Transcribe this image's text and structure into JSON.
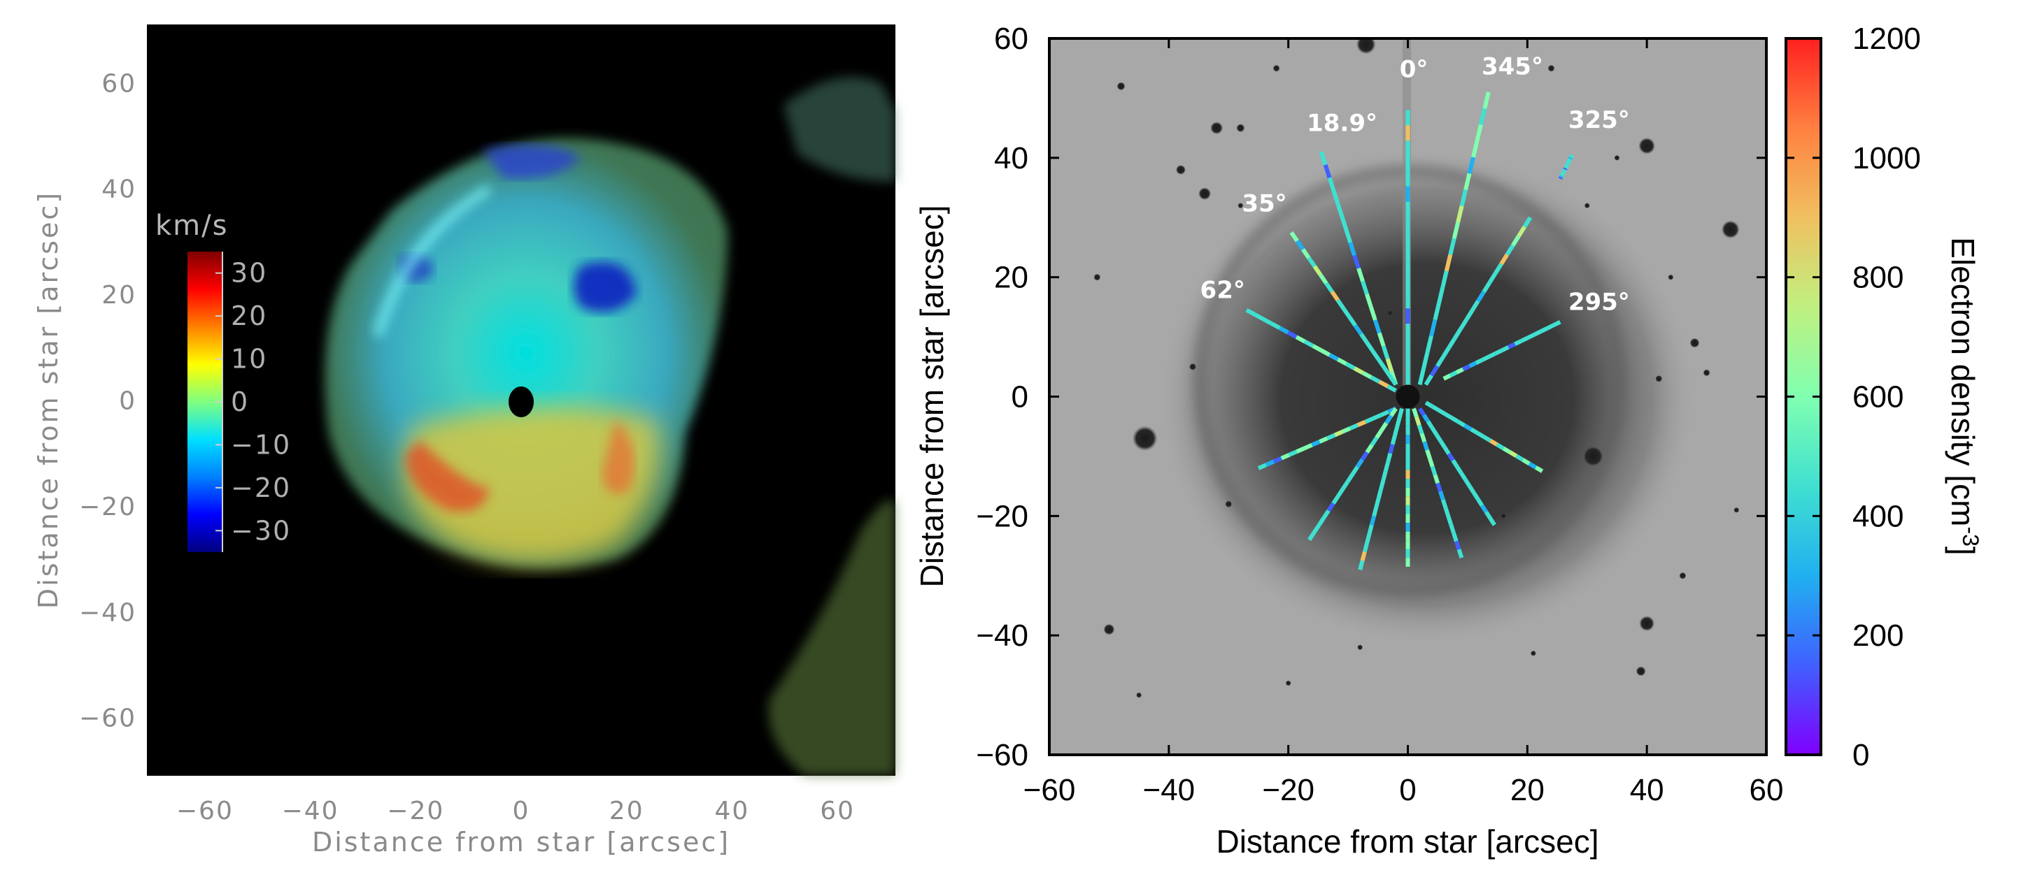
{
  "chart_data": [
    {
      "type": "heatmap",
      "title": "",
      "xlabel": "Distance from star [arcsec]",
      "ylabel": "Distance from star [arcsec]",
      "xlim": [
        -71,
        71
      ],
      "ylim": [
        -71,
        71
      ],
      "x_ticks": [
        -60,
        -40,
        -20,
        0,
        20,
        40,
        60
      ],
      "y_ticks": [
        60,
        40,
        20,
        0,
        -20,
        -40,
        -60
      ],
      "colorbar": {
        "unit": "km/s",
        "range": [
          -35,
          35
        ],
        "ticks": [
          30,
          20,
          10,
          0,
          -10,
          -20,
          -30
        ],
        "colormap": [
          "#00007f",
          "#0000ff",
          "#0080ff",
          "#00e0ff",
          "#80ff80",
          "#ffff00",
          "#ff8000",
          "#ff0000",
          "#7f0000"
        ]
      },
      "grid": false
    },
    {
      "type": "line",
      "title": "",
      "xlabel": "Distance from star [arcsec]",
      "ylabel": "Distance from star [arcsec]",
      "xlim": [
        -60,
        60
      ],
      "ylim": [
        -60,
        60
      ],
      "x_ticks": [
        -60,
        -40,
        -20,
        0,
        20,
        40,
        60
      ],
      "y_ticks": [
        60,
        40,
        20,
        0,
        -20,
        -40,
        -60
      ],
      "angle_labels": [
        "0°",
        "345°",
        "18.9°",
        "325°",
        "35°",
        "62°",
        "295°"
      ],
      "colorbar": {
        "label": "Electron density [cm",
        "label_sup": "-3",
        "label_end": "]",
        "range": [
          0,
          1200
        ],
        "ticks": [
          1200,
          1000,
          800,
          600,
          400,
          200,
          0
        ],
        "colormap": [
          "#8000ff",
          "#4060ff",
          "#20b0f0",
          "#40e0d0",
          "#80ffb0",
          "#c0f080",
          "#f0c060",
          "#ff8040",
          "#ff2020"
        ]
      },
      "series": [
        {
          "x": [
            0,
            0
          ],
          "y": [
            2,
            48
          ]
        },
        {
          "x": [
            2,
            13.5
          ],
          "y": [
            2,
            51
          ]
        },
        {
          "x": [
            -2,
            -14.5
          ],
          "y": [
            2,
            41
          ]
        },
        {
          "x": [
            25.5,
            27.5
          ],
          "y": [
            36.5,
            40.5
          ]
        },
        {
          "x": [
            -2,
            -19.5
          ],
          "y": [
            2,
            27.5
          ]
        },
        {
          "x": [
            -2,
            -27
          ],
          "y": [
            1,
            14.5
          ]
        },
        {
          "x": [
            6,
            25.5
          ],
          "y": [
            3,
            12.5
          ]
        },
        {
          "x": [
            3,
            20.5
          ],
          "y": [
            2,
            30
          ]
        },
        {
          "x": [
            -2,
            -25
          ],
          "y": [
            -2,
            -12
          ]
        },
        {
          "x": [
            -2,
            -16.5
          ],
          "y": [
            -2,
            -24
          ]
        },
        {
          "x": [
            -1,
            -8
          ],
          "y": [
            -2,
            -29
          ]
        },
        {
          "x": [
            0,
            0
          ],
          "y": [
            -2,
            -28.5
          ]
        },
        {
          "x": [
            1,
            9
          ],
          "y": [
            -2,
            -27
          ]
        },
        {
          "x": [
            2,
            14.5
          ],
          "y": [
            -2,
            -21.5
          ]
        },
        {
          "x": [
            3,
            22.5
          ],
          "y": [
            -1,
            -12.5
          ]
        }
      ]
    }
  ]
}
